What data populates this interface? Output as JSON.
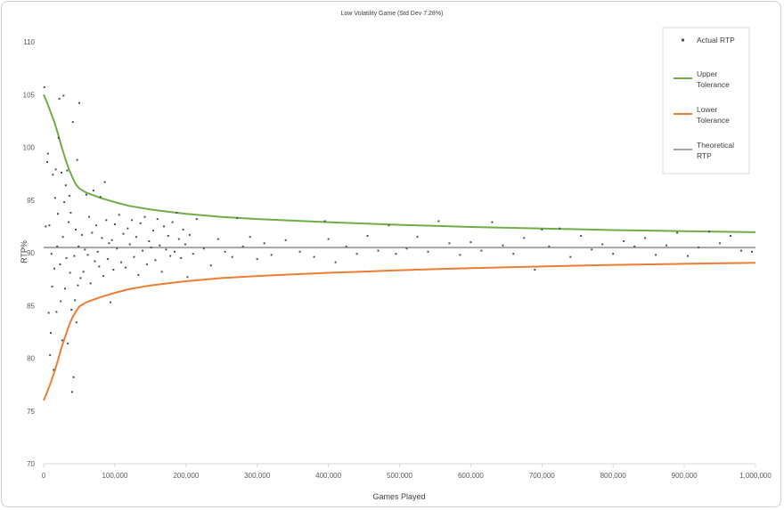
{
  "chart_data": {
    "type": "scatter",
    "title": "Low Volatility Game (Std Dev 7.28%)",
    "xlabel": "Games Played",
    "ylabel": "RTP%",
    "xlim": [
      0,
      1000000
    ],
    "ylim": [
      70,
      110
    ],
    "grid": false,
    "legend_placement": "top-right",
    "x_ticks": [
      0,
      100000,
      200000,
      300000,
      400000,
      500000,
      600000,
      700000,
      800000,
      900000,
      1000000
    ],
    "x_tick_labels": [
      "0",
      "100,000",
      "200,000",
      "300,000",
      "400,000",
      "500,000",
      "600,000",
      "700,000",
      "800,000",
      "900,000",
      "1,000,000"
    ],
    "y_ticks": [
      70,
      75,
      80,
      85,
      90,
      95,
      100,
      105,
      110
    ],
    "y_tick_labels": [
      "70",
      "75",
      "80",
      "85",
      "90",
      "95",
      "100",
      "105",
      "110"
    ],
    "legend": [
      {
        "key": "actual",
        "lines": [
          "Actual RTP"
        ]
      },
      {
        "key": "upper",
        "lines": [
          "Upper",
          "Tolerance"
        ]
      },
      {
        "key": "lower",
        "lines": [
          "Lower",
          "Tolerance"
        ]
      },
      {
        "key": "theoretical",
        "lines": [
          "Theoretical",
          "RTP"
        ]
      }
    ],
    "colors": {
      "actual": "#44546a",
      "upper": "#70ad47",
      "lower": "#ed7d31",
      "theoretical": "#a5a5a5"
    },
    "series": [
      {
        "name": "Upper Tolerance",
        "type": "line",
        "points": [
          [
            0,
            105
          ],
          [
            5000,
            104.2
          ],
          [
            10000,
            103.3
          ],
          [
            15000,
            102.4
          ],
          [
            20000,
            101.3
          ],
          [
            25000,
            100.1
          ],
          [
            30000,
            99
          ],
          [
            35000,
            98
          ],
          [
            40000,
            97.2
          ],
          [
            45000,
            96.5
          ],
          [
            50000,
            96.1
          ],
          [
            60000,
            95.7
          ],
          [
            70000,
            95.45
          ],
          [
            80000,
            95.2
          ],
          [
            100000,
            94.8
          ],
          [
            120000,
            94.45
          ],
          [
            150000,
            94.1
          ],
          [
            180000,
            93.85
          ],
          [
            200000,
            93.7
          ],
          [
            250000,
            93.4
          ],
          [
            300000,
            93.2
          ],
          [
            350000,
            93.05
          ],
          [
            400000,
            92.9
          ],
          [
            450000,
            92.78
          ],
          [
            500000,
            92.65
          ],
          [
            600000,
            92.45
          ],
          [
            700000,
            92.3
          ],
          [
            800000,
            92.15
          ],
          [
            900000,
            92.05
          ],
          [
            1000000,
            91.95
          ]
        ]
      },
      {
        "name": "Lower Tolerance",
        "type": "line",
        "points": [
          [
            0,
            76
          ],
          [
            5000,
            76.8
          ],
          [
            10000,
            77.7
          ],
          [
            15000,
            78.7
          ],
          [
            20000,
            79.8
          ],
          [
            25000,
            81
          ],
          [
            30000,
            82
          ],
          [
            35000,
            83
          ],
          [
            40000,
            83.8
          ],
          [
            45000,
            84.4
          ],
          [
            50000,
            84.9
          ],
          [
            60000,
            85.3
          ],
          [
            70000,
            85.55
          ],
          [
            80000,
            85.8
          ],
          [
            100000,
            86.2
          ],
          [
            120000,
            86.55
          ],
          [
            150000,
            86.9
          ],
          [
            180000,
            87.15
          ],
          [
            200000,
            87.3
          ],
          [
            250000,
            87.6
          ],
          [
            300000,
            87.8
          ],
          [
            350000,
            87.95
          ],
          [
            400000,
            88.1
          ],
          [
            450000,
            88.22
          ],
          [
            500000,
            88.35
          ],
          [
            600000,
            88.55
          ],
          [
            700000,
            88.7
          ],
          [
            800000,
            88.85
          ],
          [
            900000,
            88.95
          ],
          [
            1000000,
            89.05
          ]
        ]
      },
      {
        "name": "Theoretical RTP",
        "type": "line",
        "points": [
          [
            0,
            90.5
          ],
          [
            1000000,
            90.5
          ]
        ]
      },
      {
        "name": "Actual RTP",
        "type": "scatter",
        "points": [
          [
            1000,
            105.7
          ],
          [
            3000,
            92.5
          ],
          [
            5000,
            98.6
          ],
          [
            6000,
            99.4
          ],
          [
            7000,
            84.3
          ],
          [
            8000,
            92.6
          ],
          [
            9000,
            80.3
          ],
          [
            10000,
            82.4
          ],
          [
            11000,
            89.9
          ],
          [
            12000,
            86.8
          ],
          [
            13000,
            97.4
          ],
          [
            14000,
            78.9
          ],
          [
            15000,
            88.5
          ],
          [
            16000,
            95.2
          ],
          [
            17000,
            97.9
          ],
          [
            18000,
            84.4
          ],
          [
            19000,
            90.6
          ],
          [
            20000,
            93.7
          ],
          [
            21000,
            100.9
          ],
          [
            22000,
            104.6
          ],
          [
            23000,
            88.9
          ],
          [
            24000,
            85.4
          ],
          [
            25000,
            97.6
          ],
          [
            26000,
            81.7
          ],
          [
            27000,
            91.5
          ],
          [
            28000,
            104.9
          ],
          [
            29000,
            94.8
          ],
          [
            30000,
            86.6
          ],
          [
            31000,
            96.4
          ],
          [
            32000,
            89.5
          ],
          [
            33000,
            97.8
          ],
          [
            34000,
            81.4
          ],
          [
            35000,
            92.9
          ],
          [
            36000,
            95.4
          ],
          [
            37000,
            88.1
          ],
          [
            38000,
            93.8
          ],
          [
            39000,
            84.6
          ],
          [
            40000,
            76.8
          ],
          [
            41000,
            102.4
          ],
          [
            42000,
            78.2
          ],
          [
            43000,
            89.7
          ],
          [
            44000,
            85.5
          ],
          [
            45000,
            92.2
          ],
          [
            46000,
            83.4
          ],
          [
            47000,
            98.8
          ],
          [
            48000,
            86.9
          ],
          [
            49000,
            90.6
          ],
          [
            50000,
            104.2
          ],
          [
            52000,
            87.6
          ],
          [
            54000,
            91.7
          ],
          [
            56000,
            88.2
          ],
          [
            58000,
            90.3
          ],
          [
            60000,
            95.5
          ],
          [
            62000,
            89.8
          ],
          [
            64000,
            93.4
          ],
          [
            66000,
            87.1
          ],
          [
            68000,
            91.9
          ],
          [
            70000,
            95.9
          ],
          [
            72000,
            89.2
          ],
          [
            74000,
            92.6
          ],
          [
            76000,
            90.1
          ],
          [
            78000,
            88.7
          ],
          [
            80000,
            95.3
          ],
          [
            82000,
            91.4
          ],
          [
            84000,
            87.8
          ],
          [
            86000,
            96.7
          ],
          [
            88000,
            93.1
          ],
          [
            90000,
            89.4
          ],
          [
            92000,
            90.9
          ],
          [
            94000,
            85.3
          ],
          [
            96000,
            91.2
          ],
          [
            98000,
            88.4
          ],
          [
            100000,
            92.7
          ],
          [
            103000,
            90.4
          ],
          [
            106000,
            93.6
          ],
          [
            109000,
            89.1
          ],
          [
            112000,
            91.8
          ],
          [
            115000,
            88.6
          ],
          [
            118000,
            92.3
          ],
          [
            121000,
            90.8
          ],
          [
            124000,
            93.1
          ],
          [
            127000,
            89.6
          ],
          [
            130000,
            91.5
          ],
          [
            133000,
            87.9
          ],
          [
            136000,
            92.8
          ],
          [
            139000,
            90.2
          ],
          [
            142000,
            93.4
          ],
          [
            145000,
            88.9
          ],
          [
            148000,
            91.1
          ],
          [
            151000,
            90.5
          ],
          [
            154000,
            92.1
          ],
          [
            157000,
            89.3
          ],
          [
            160000,
            93.2
          ],
          [
            163000,
            90.7
          ],
          [
            166000,
            88.2
          ],
          [
            169000,
            92.5
          ],
          [
            172000,
            90.3
          ],
          [
            175000,
            91.6
          ],
          [
            178000,
            89.7
          ],
          [
            181000,
            92.9
          ],
          [
            184000,
            90.1
          ],
          [
            187000,
            93.8
          ],
          [
            190000,
            91.3
          ],
          [
            193000,
            89.5
          ],
          [
            196000,
            92.2
          ],
          [
            199000,
            90.8
          ],
          [
            202000,
            87.7
          ],
          [
            205000,
            91.7
          ],
          [
            210000,
            89.9
          ],
          [
            215000,
            93.2
          ],
          [
            225000,
            90.4
          ],
          [
            235000,
            88.8
          ],
          [
            245000,
            91.3
          ],
          [
            255000,
            90.1
          ],
          [
            265000,
            89.6
          ],
          [
            272000,
            93.3
          ],
          [
            280000,
            90.6
          ],
          [
            290000,
            91.5
          ],
          [
            300000,
            89.4
          ],
          [
            310000,
            90.9
          ],
          [
            320000,
            89.8
          ],
          [
            340000,
            91.2
          ],
          [
            360000,
            90.1
          ],
          [
            380000,
            89.6
          ],
          [
            395000,
            93.0
          ],
          [
            400000,
            91.3
          ],
          [
            410000,
            89.1
          ],
          [
            425000,
            90.6
          ],
          [
            440000,
            89.9
          ],
          [
            455000,
            91.6
          ],
          [
            470000,
            90.2
          ],
          [
            485000,
            92.6
          ],
          [
            495000,
            89.9
          ],
          [
            510000,
            90.4
          ],
          [
            525000,
            91.5
          ],
          [
            540000,
            90.1
          ],
          [
            555000,
            93.0
          ],
          [
            570000,
            90.9
          ],
          [
            585000,
            89.8
          ],
          [
            600000,
            91.0
          ],
          [
            615000,
            90.2
          ],
          [
            630000,
            92.9
          ],
          [
            645000,
            90.7
          ],
          [
            660000,
            89.9
          ],
          [
            675000,
            91.4
          ],
          [
            690000,
            88.4
          ],
          [
            700000,
            92.2
          ],
          [
            710000,
            90.6
          ],
          [
            725000,
            92.3
          ],
          [
            740000,
            89.6
          ],
          [
            755000,
            91.6
          ],
          [
            770000,
            90.3
          ],
          [
            785000,
            90.8
          ],
          [
            800000,
            89.9
          ],
          [
            815000,
            91.1
          ],
          [
            830000,
            90.6
          ],
          [
            845000,
            91.4
          ],
          [
            860000,
            89.8
          ],
          [
            875000,
            90.7
          ],
          [
            890000,
            91.9
          ],
          [
            905000,
            89.7
          ],
          [
            920000,
            90.5
          ],
          [
            935000,
            92.0
          ],
          [
            950000,
            90.9
          ],
          [
            965000,
            91.6
          ],
          [
            980000,
            90.2
          ],
          [
            995000,
            90.1
          ]
        ]
      }
    ]
  }
}
